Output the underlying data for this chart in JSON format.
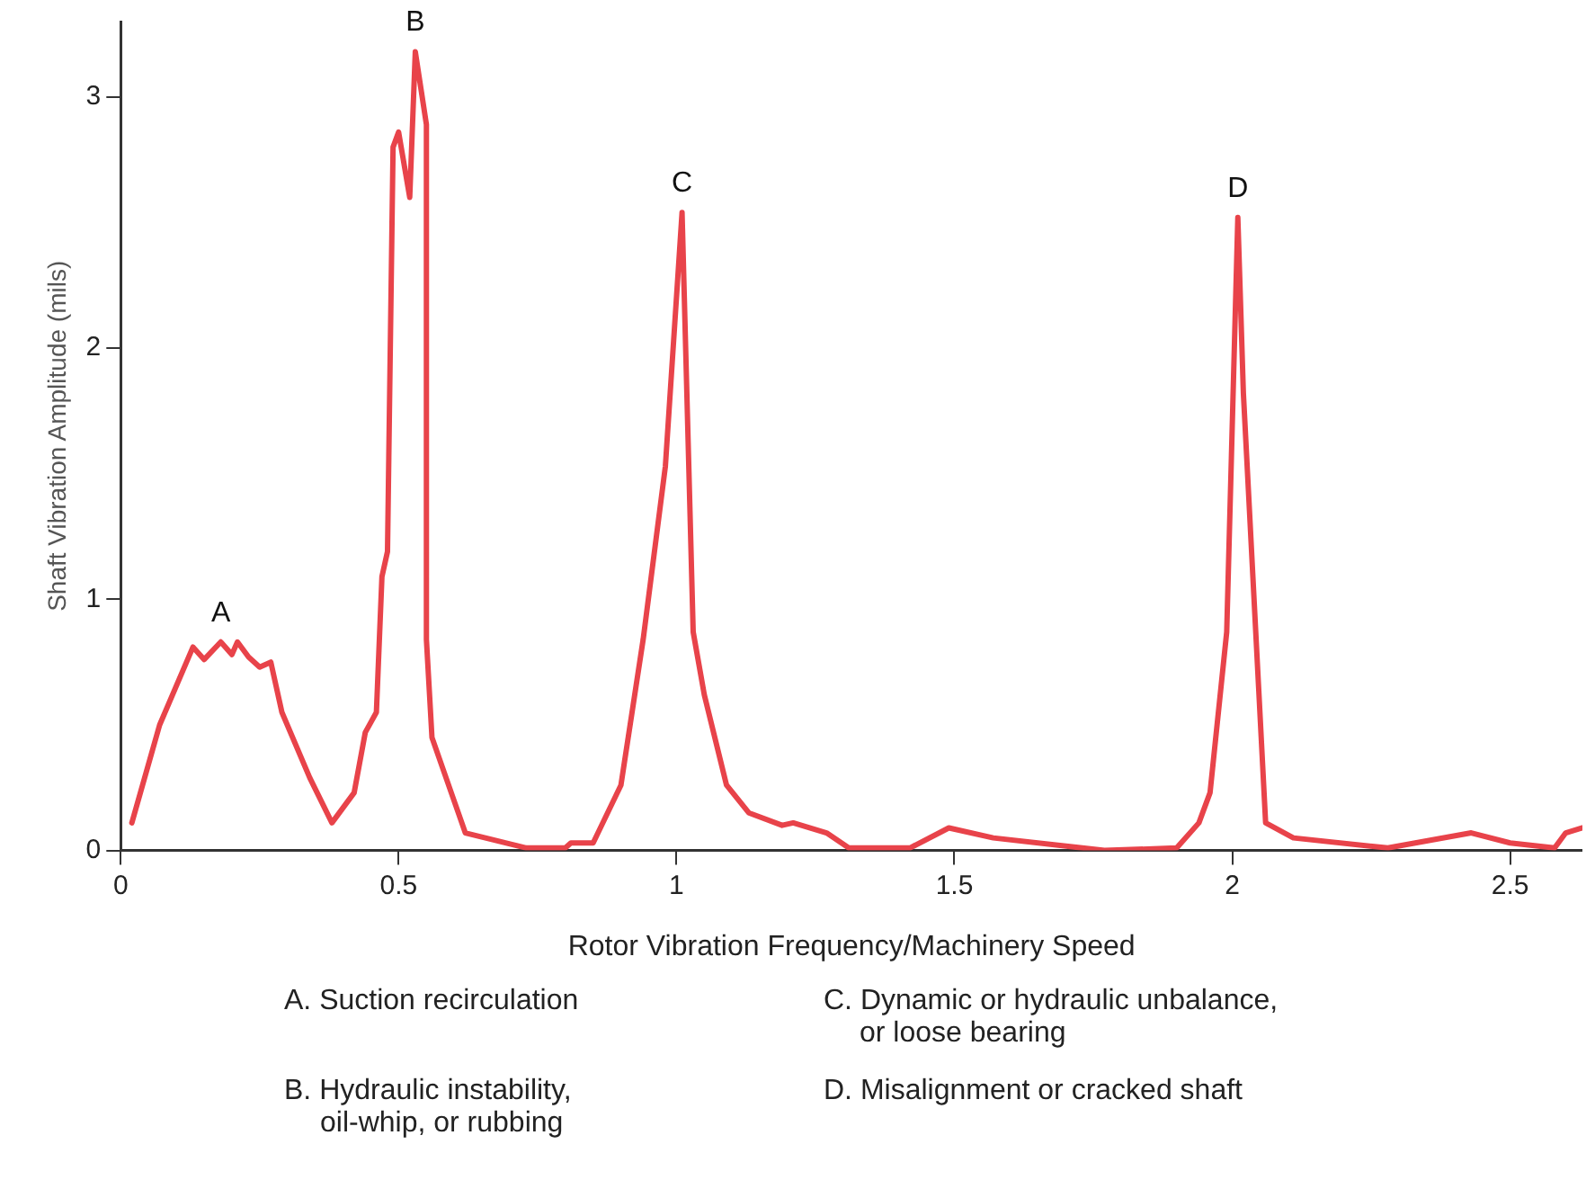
{
  "chart_data": {
    "type": "line",
    "xlabel": "Rotor Vibration Frequency/Machinery Speed",
    "ylabel": "Shaft Vibration Amplitude (mils)",
    "x": [
      0.02,
      0.07,
      0.13,
      0.15,
      0.18,
      0.2,
      0.21,
      0.23,
      0.25,
      0.27,
      0.29,
      0.34,
      0.38,
      0.42,
      0.44,
      0.46,
      0.47,
      0.48,
      0.49,
      0.5,
      0.52,
      0.53,
      0.55,
      0.55,
      0.56,
      0.62,
      0.73,
      0.8,
      0.81,
      0.85,
      0.9,
      0.94,
      0.98,
      1.01,
      1.03,
      1.05,
      1.09,
      1.13,
      1.19,
      1.21,
      1.27,
      1.31,
      1.42,
      1.49,
      1.57,
      1.77,
      1.9,
      1.94,
      1.96,
      1.99,
      2.01,
      2.02,
      2.06,
      2.11,
      2.28,
      2.43,
      2.5,
      2.58,
      2.6,
      2.63
    ],
    "series": [
      {
        "color": "#e8434a",
        "values": [
          0.11,
          0.5,
          0.81,
          0.76,
          0.83,
          0.78,
          0.83,
          0.77,
          0.73,
          0.75,
          0.55,
          0.29,
          0.11,
          0.23,
          0.47,
          0.55,
          1.09,
          1.19,
          2.8,
          2.86,
          2.6,
          3.18,
          2.89,
          0.84,
          0.45,
          0.07,
          0.01,
          0.01,
          0.03,
          0.03,
          0.26,
          0.84,
          1.53,
          2.54,
          0.87,
          0.62,
          0.26,
          0.15,
          0.1,
          0.11,
          0.07,
          0.01,
          0.01,
          0.09,
          0.05,
          0.0,
          0.01,
          0.11,
          0.23,
          0.87,
          2.52,
          1.82,
          0.11,
          0.05,
          0.01,
          0.07,
          0.03,
          0.01,
          0.07,
          0.09
        ]
      }
    ],
    "xlim": [
      0,
      2.63
    ],
    "ylim": [
      0,
      3.3
    ],
    "xticks": [
      0,
      0.5,
      1,
      1.5,
      2,
      2.5
    ],
    "yticks": [
      0,
      1,
      2,
      3
    ],
    "grid": false,
    "legend": false,
    "marker": "none",
    "line_style": "solid",
    "annotations": [
      {
        "text": "A",
        "x": 0.18,
        "y": 0.83
      },
      {
        "text": "B",
        "x": 0.53,
        "y": 3.18
      },
      {
        "text": "C",
        "x": 1.01,
        "y": 2.54
      },
      {
        "text": "D",
        "x": 2.01,
        "y": 2.52
      },
      "A. Suction recirculation",
      "B. Hydraulic instability,\noil-whip, or rubbing",
      "C. Dynamic or hydraulic unbalance,\nor loose bearing",
      "D. Misalignment or cracked shaft"
    ]
  }
}
